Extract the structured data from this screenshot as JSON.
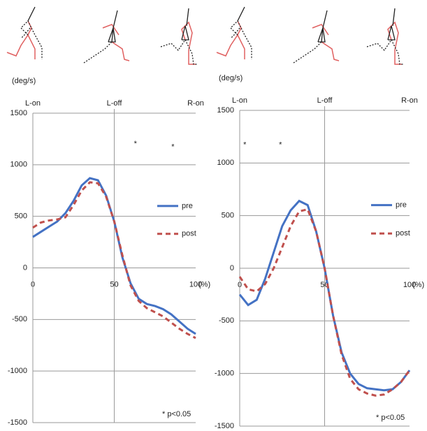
{
  "chart_data": [
    {
      "type": "line",
      "y_label": "(deg/s)",
      "x_unit": "(%)",
      "x": [
        0,
        5,
        10,
        15,
        20,
        25,
        30,
        35,
        40,
        45,
        50,
        55,
        60,
        65,
        70,
        75,
        80,
        85,
        90,
        95,
        100
      ],
      "series": [
        {
          "name": "pre",
          "color": "#4472c4",
          "dash": false,
          "values": [
            300,
            350,
            400,
            450,
            530,
            650,
            800,
            870,
            850,
            700,
            450,
            100,
            -150,
            -300,
            -350,
            -370,
            -400,
            -450,
            -520,
            -590,
            -640
          ]
        },
        {
          "name": "post",
          "color": "#c0504d",
          "dash": true,
          "values": [
            390,
            440,
            460,
            470,
            490,
            610,
            750,
            830,
            820,
            690,
            450,
            120,
            -170,
            -320,
            -390,
            -430,
            -470,
            -530,
            -590,
            -640,
            -680
          ]
        }
      ],
      "xlim": [
        0,
        100
      ],
      "xticks": [
        0,
        50,
        100
      ],
      "ylim": [
        -1500,
        1500
      ],
      "yticks": [
        -1500,
        -1000,
        -500,
        0,
        500,
        1000,
        1500
      ],
      "grid": true,
      "phases": [
        {
          "label": "L-on",
          "x": 0
        },
        {
          "label": "L-off",
          "x": 50
        },
        {
          "label": "R-on",
          "x": 100
        }
      ],
      "annotations": [
        {
          "text": "*",
          "x": 63,
          "y": 1200
        },
        {
          "text": "*",
          "x": 86,
          "y": 1170
        }
      ],
      "note": "* p<0.05",
      "legend": "right"
    },
    {
      "type": "line",
      "y_label": "(deg/s)",
      "x_unit": "(%)",
      "x": [
        0,
        5,
        10,
        15,
        20,
        25,
        30,
        35,
        40,
        45,
        50,
        55,
        60,
        65,
        70,
        75,
        80,
        85,
        90,
        95,
        100
      ],
      "series": [
        {
          "name": "pre",
          "color": "#4472c4",
          "dash": false,
          "values": [
            -250,
            -350,
            -300,
            -100,
            150,
            400,
            550,
            640,
            600,
            350,
            0,
            -450,
            -800,
            -1000,
            -1100,
            -1140,
            -1150,
            -1160,
            -1150,
            -1080,
            -970
          ]
        },
        {
          "name": "post",
          "color": "#c0504d",
          "dash": true,
          "values": [
            -80,
            -200,
            -220,
            -150,
            0,
            200,
            400,
            540,
            560,
            350,
            0,
            -450,
            -820,
            -1050,
            -1150,
            -1190,
            -1210,
            -1200,
            -1150,
            -1080,
            -970
          ]
        }
      ],
      "xlim": [
        0,
        100
      ],
      "xticks": [
        0,
        50,
        100
      ],
      "ylim": [
        -1500,
        1500
      ],
      "yticks": [
        -1500,
        -1000,
        -500,
        0,
        500,
        1000,
        1500
      ],
      "grid": true,
      "phases": [
        {
          "label": "L-on",
          "x": 0
        },
        {
          "label": "L-off",
          "x": 50
        },
        {
          "label": "R-on",
          "x": 100
        }
      ],
      "annotations": [
        {
          "text": "*",
          "x": 3,
          "y": 1170
        },
        {
          "text": "*",
          "x": 24,
          "y": 1170
        }
      ],
      "note": "* p<0.05",
      "legend": "right"
    }
  ]
}
